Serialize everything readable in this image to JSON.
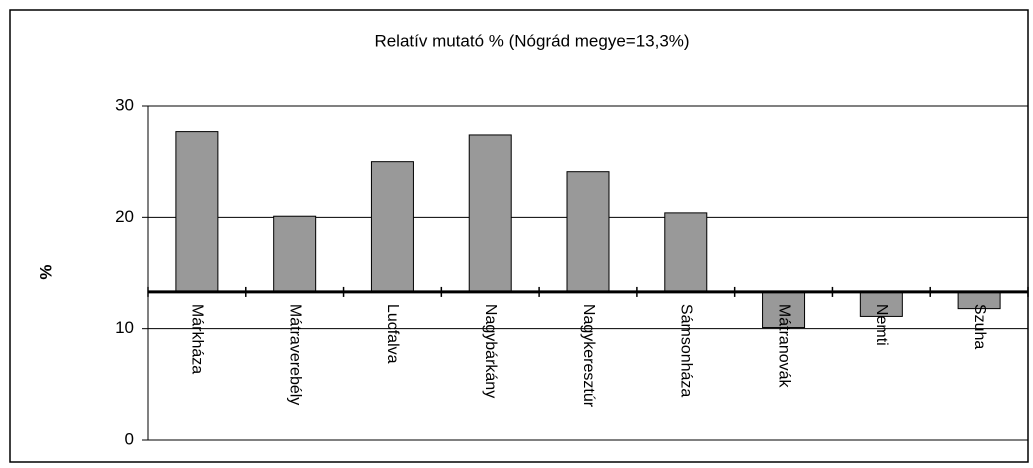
{
  "chart_data": {
    "type": "bar",
    "title": "Relatív mutató % (Nógrád megye=13,3%)",
    "y_label": "%",
    "categories": [
      "Márkháza",
      "Mátraverebély",
      "Lucfalva",
      "Nagybárkány",
      "Nagykeresztúr",
      "Sámsonháza",
      "Mátranovák",
      "Nemti",
      "Szuha"
    ],
    "values": [
      27.7,
      20.1,
      25.0,
      27.4,
      24.1,
      20.4,
      10.1,
      11.1,
      11.8
    ],
    "color": "#999999",
    "x_axis_crosses": 13.3,
    "ylim": [
      0,
      30
    ],
    "yticks": [
      0,
      10,
      20,
      30
    ],
    "grid": true
  }
}
